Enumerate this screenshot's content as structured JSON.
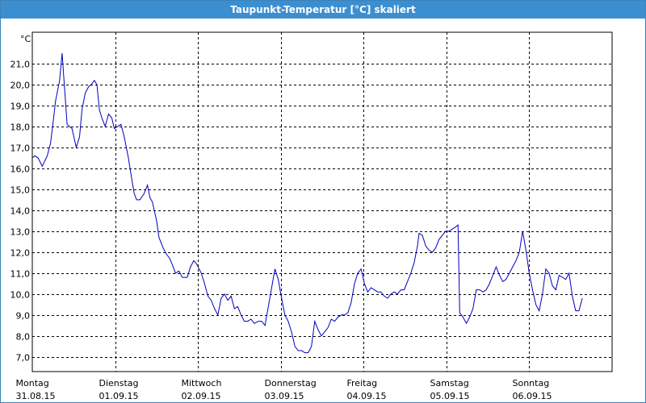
{
  "window": {
    "title": "Taupunkt-Temperatur [°C] skaliert"
  },
  "chart_data": {
    "type": "line",
    "title": "Taupunkt-Temperatur [°C] skaliert",
    "ylabel": "°C",
    "ylim": [
      6.3,
      22.5
    ],
    "xlim": [
      0,
      7.0
    ],
    "grid": true,
    "line_color": "#0000bb",
    "y_ticks": [
      7,
      8,
      9,
      10,
      11,
      12,
      13,
      14,
      15,
      16,
      17,
      18,
      19,
      20,
      21
    ],
    "y_tick_labels": [
      "7,0",
      "8,0",
      "9,0",
      "10,0",
      "11,0",
      "12,0",
      "13,0",
      "14,0",
      "15,0",
      "16,0",
      "17,0",
      "18,0",
      "19,0",
      "20,0",
      "21,0"
    ],
    "x_ticks": [
      {
        "pos": 0,
        "day": "Montag",
        "date": "31.08.15"
      },
      {
        "pos": 1,
        "day": "Dienstag",
        "date": "01.09.15"
      },
      {
        "pos": 2,
        "day": "Mittwoch",
        "date": "02.09.15"
      },
      {
        "pos": 3,
        "day": "Donnerstag",
        "date": "03.09.15"
      },
      {
        "pos": 4,
        "day": "Freitag",
        "date": "04.09.15"
      },
      {
        "pos": 5,
        "day": "Samstag",
        "date": "05.09.15"
      },
      {
        "pos": 6,
        "day": "Sonntag",
        "date": "06.09.15"
      }
    ],
    "series": [
      {
        "values": [
          [
            0.0,
            16.5
          ],
          [
            0.03,
            16.6
          ],
          [
            0.07,
            16.5
          ],
          [
            0.12,
            16.1
          ],
          [
            0.18,
            16.6
          ],
          [
            0.22,
            17.2
          ],
          [
            0.26,
            18.5
          ],
          [
            0.28,
            19.2
          ],
          [
            0.33,
            20.2
          ],
          [
            0.36,
            21.5
          ],
          [
            0.39,
            19.8
          ],
          [
            0.42,
            18.1
          ],
          [
            0.48,
            17.9
          ],
          [
            0.53,
            17.0
          ],
          [
            0.57,
            17.5
          ],
          [
            0.6,
            18.8
          ],
          [
            0.64,
            19.6
          ],
          [
            0.68,
            19.9
          ],
          [
            0.71,
            20.0
          ],
          [
            0.75,
            20.2
          ],
          [
            0.78,
            20.0
          ],
          [
            0.81,
            18.8
          ],
          [
            0.84,
            18.4
          ],
          [
            0.88,
            18.0
          ],
          [
            0.92,
            18.6
          ],
          [
            0.96,
            18.4
          ],
          [
            0.99,
            17.9
          ],
          [
            1.03,
            18.0
          ],
          [
            1.07,
            18.1
          ],
          [
            1.11,
            17.5
          ],
          [
            1.16,
            16.5
          ],
          [
            1.2,
            15.5
          ],
          [
            1.23,
            14.8
          ],
          [
            1.26,
            14.5
          ],
          [
            1.3,
            14.5
          ],
          [
            1.35,
            14.8
          ],
          [
            1.39,
            15.2
          ],
          [
            1.42,
            14.6
          ],
          [
            1.45,
            14.4
          ],
          [
            1.5,
            13.5
          ],
          [
            1.53,
            12.7
          ],
          [
            1.58,
            12.2
          ],
          [
            1.62,
            11.9
          ],
          [
            1.66,
            11.7
          ],
          [
            1.7,
            11.3
          ],
          [
            1.73,
            11.0
          ],
          [
            1.77,
            11.1
          ],
          [
            1.81,
            10.8
          ],
          [
            1.87,
            10.8
          ],
          [
            1.91,
            11.3
          ],
          [
            1.95,
            11.6
          ],
          [
            1.99,
            11.4
          ],
          [
            2.04,
            11.0
          ],
          [
            2.08,
            10.5
          ],
          [
            2.12,
            9.9
          ],
          [
            2.16,
            9.7
          ],
          [
            2.2,
            9.3
          ],
          [
            2.24,
            9.0
          ],
          [
            2.28,
            9.8
          ],
          [
            2.32,
            10.0
          ],
          [
            2.36,
            9.7
          ],
          [
            2.4,
            9.9
          ],
          [
            2.44,
            9.3
          ],
          [
            2.48,
            9.4
          ],
          [
            2.52,
            9.0
          ],
          [
            2.56,
            8.7
          ],
          [
            2.6,
            8.7
          ],
          [
            2.64,
            8.8
          ],
          [
            2.68,
            8.6
          ],
          [
            2.73,
            8.7
          ],
          [
            2.77,
            8.7
          ],
          [
            2.81,
            8.5
          ],
          [
            2.85,
            9.4
          ],
          [
            2.89,
            10.3
          ],
          [
            2.93,
            11.2
          ],
          [
            2.97,
            10.7
          ],
          [
            3.01,
            9.8
          ],
          [
            3.05,
            9.0
          ],
          [
            3.09,
            8.7
          ],
          [
            3.13,
            8.2
          ],
          [
            3.17,
            7.5
          ],
          [
            3.21,
            7.3
          ],
          [
            3.25,
            7.3
          ],
          [
            3.29,
            7.2
          ],
          [
            3.33,
            7.2
          ],
          [
            3.37,
            7.5
          ],
          [
            3.41,
            8.7
          ],
          [
            3.45,
            8.3
          ],
          [
            3.49,
            8.0
          ],
          [
            3.53,
            8.2
          ],
          [
            3.57,
            8.4
          ],
          [
            3.61,
            8.8
          ],
          [
            3.65,
            8.7
          ],
          [
            3.69,
            8.9
          ],
          [
            3.73,
            9.0
          ],
          [
            3.77,
            9.0
          ],
          [
            3.81,
            9.1
          ],
          [
            3.85,
            9.6
          ],
          [
            3.89,
            10.5
          ],
          [
            3.93,
            11.0
          ],
          [
            3.97,
            11.2
          ],
          [
            4.01,
            10.5
          ],
          [
            4.05,
            10.1
          ],
          [
            4.09,
            10.3
          ],
          [
            4.13,
            10.2
          ],
          [
            4.17,
            10.1
          ],
          [
            4.21,
            10.1
          ],
          [
            4.25,
            9.9
          ],
          [
            4.29,
            9.8
          ],
          [
            4.33,
            10.0
          ],
          [
            4.37,
            10.1
          ],
          [
            4.41,
            10.0
          ],
          [
            4.45,
            10.2
          ],
          [
            4.49,
            10.2
          ],
          [
            4.53,
            10.6
          ],
          [
            4.57,
            11.0
          ],
          [
            4.61,
            11.5
          ],
          [
            4.65,
            12.3
          ],
          [
            4.67,
            12.9
          ],
          [
            4.71,
            12.8
          ],
          [
            4.75,
            12.3
          ],
          [
            4.79,
            12.1
          ],
          [
            4.83,
            12.0
          ],
          [
            4.87,
            12.2
          ],
          [
            4.91,
            12.6
          ],
          [
            4.95,
            12.8
          ],
          [
            4.99,
            13.0
          ],
          [
            5.03,
            13.0
          ],
          [
            5.07,
            13.1
          ],
          [
            5.11,
            13.2
          ],
          [
            5.14,
            13.3
          ],
          [
            5.16,
            9.1
          ],
          [
            5.2,
            8.9
          ],
          [
            5.24,
            8.6
          ],
          [
            5.28,
            8.9
          ],
          [
            5.32,
            9.3
          ],
          [
            5.36,
            10.2
          ],
          [
            5.4,
            10.2
          ],
          [
            5.44,
            10.1
          ],
          [
            5.48,
            10.2
          ],
          [
            5.52,
            10.5
          ],
          [
            5.56,
            10.9
          ],
          [
            5.6,
            11.3
          ],
          [
            5.64,
            10.9
          ],
          [
            5.68,
            10.6
          ],
          [
            5.72,
            10.7
          ],
          [
            5.76,
            11.0
          ],
          [
            5.8,
            11.3
          ],
          [
            5.84,
            11.6
          ],
          [
            5.88,
            12.0
          ],
          [
            5.92,
            13.0
          ],
          [
            5.96,
            12.1
          ],
          [
            6.0,
            11.0
          ],
          [
            6.04,
            10.2
          ],
          [
            6.08,
            9.5
          ],
          [
            6.12,
            9.2
          ],
          [
            6.16,
            10.0
          ],
          [
            6.2,
            11.2
          ],
          [
            6.24,
            11.0
          ],
          [
            6.28,
            10.4
          ],
          [
            6.32,
            10.2
          ],
          [
            6.36,
            10.9
          ],
          [
            6.4,
            10.8
          ],
          [
            6.44,
            10.7
          ],
          [
            6.48,
            11.0
          ],
          [
            6.52,
            9.9
          ],
          [
            6.56,
            9.2
          ],
          [
            6.6,
            9.2
          ],
          [
            6.64,
            9.8
          ]
        ]
      }
    ]
  }
}
